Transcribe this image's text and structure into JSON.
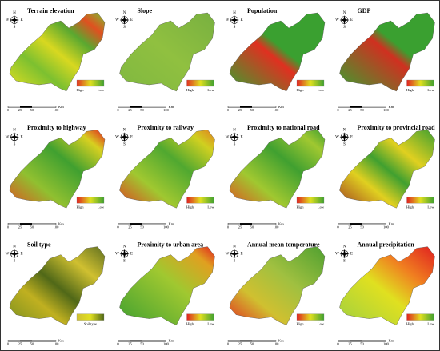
{
  "panels": [
    {
      "title": "Terrain elevation",
      "legend": [
        "High",
        "Low"
      ]
    },
    {
      "title": "Slope",
      "legend": [
        "High",
        "Low"
      ]
    },
    {
      "title": "Population",
      "legend": [
        "High",
        "Low"
      ]
    },
    {
      "title": "GDP",
      "legend": [
        "High",
        "Low"
      ]
    },
    {
      "title": "Proximity to highway",
      "legend": [
        "High",
        "Low"
      ]
    },
    {
      "title": "Proximity to railway",
      "legend": [
        "High",
        "Low"
      ]
    },
    {
      "title": "Proximity to national road",
      "legend": [
        "High",
        "Low"
      ]
    },
    {
      "title": "Proximity to provincial road",
      "legend": [
        "High",
        "Low"
      ]
    },
    {
      "title": "Soil type",
      "legend": [
        "Soil type"
      ]
    },
    {
      "title": "Proximity to urban area",
      "legend": [
        "High",
        "Low"
      ]
    },
    {
      "title": "Annual mean temperature",
      "legend": [
        "High",
        "Low"
      ]
    },
    {
      "title": "Annual precipitation",
      "legend": [
        "High",
        "Low"
      ]
    }
  ],
  "compass": {
    "north": "N",
    "south": "S",
    "east": "E",
    "west": "W"
  },
  "scale_bar": {
    "ticks": [
      "0",
      "25",
      "50",
      "100"
    ],
    "unit": "Km"
  }
}
